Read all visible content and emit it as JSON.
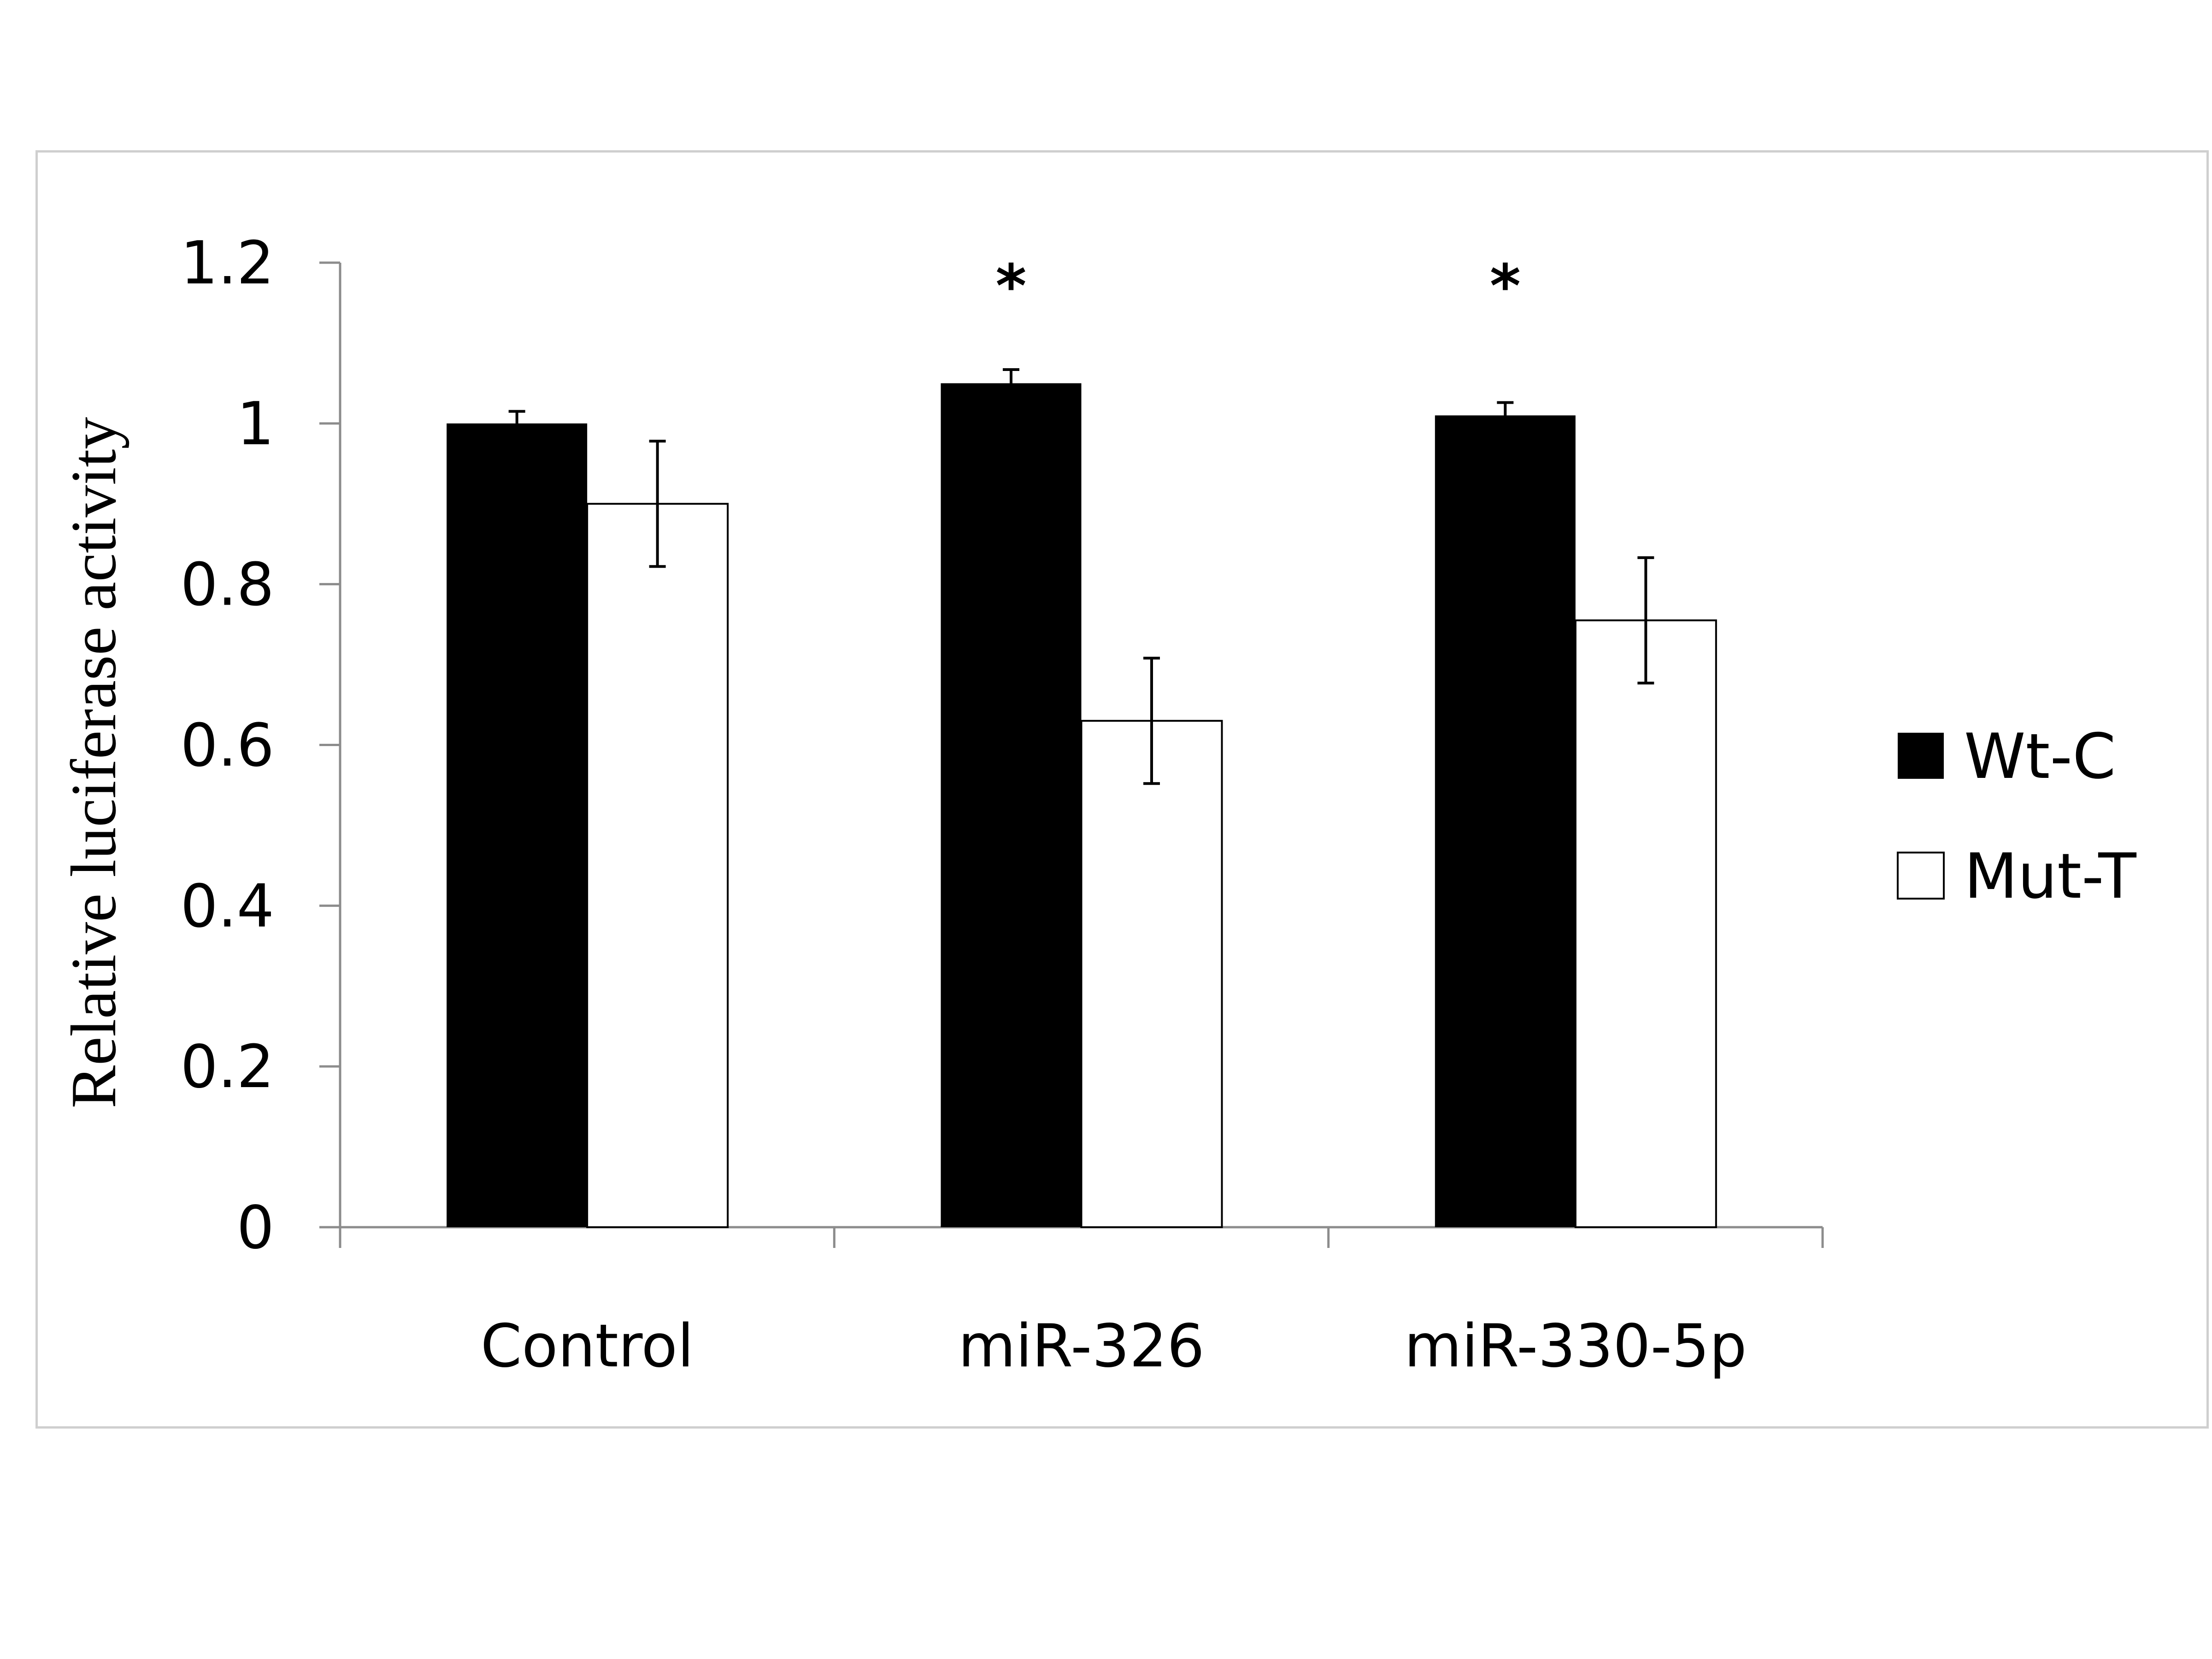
{
  "chart_data": {
    "type": "bar",
    "ylabel": "Relative luciferase activity",
    "xlabel": "",
    "ylim": [
      0,
      1.2
    ],
    "yticks": [
      "0",
      "0.2",
      "0.4",
      "0.6",
      "0.8",
      "1",
      "1.2"
    ],
    "categories": [
      "Control",
      "miR-326",
      "miR-330-5p"
    ],
    "series": [
      {
        "name": "Wt-C",
        "values": [
          1.0,
          1.05,
          1.01
        ],
        "errors": [
          0.015,
          0.017,
          0.016
        ],
        "color": "#000000"
      },
      {
        "name": "Mut-T",
        "values": [
          0.9,
          0.63,
          0.755
        ],
        "errors": [
          0.078,
          0.078,
          0.078
        ],
        "color": "#ffffff"
      }
    ],
    "annotations": [
      "*",
      "*"
    ],
    "annotation_categories": [
      "miR-326",
      "miR-330-5p"
    ],
    "grid": false,
    "legend_position": "right"
  }
}
